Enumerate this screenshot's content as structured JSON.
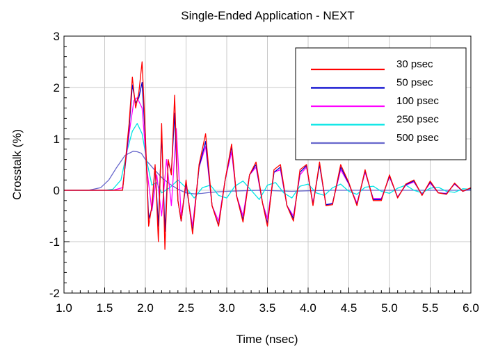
{
  "chart_data": {
    "type": "line",
    "title": "Single-Ended Application - NEXT",
    "xlabel": "Time (nsec)",
    "ylabel": "Crosstalk (%)",
    "xlim": [
      1.0,
      6.0
    ],
    "ylim": [
      -2,
      3
    ],
    "xticks": [
      "1.0",
      "1.5",
      "2.0",
      "2.5",
      "3.0",
      "3.5",
      "4.0",
      "4.5",
      "5.0",
      "5.5",
      "6.0"
    ],
    "yticks": [
      "-2",
      "-1",
      "0",
      "1",
      "2",
      "3"
    ],
    "grid": true,
    "legend_position": "top-right",
    "series": [
      {
        "name": "30 psec",
        "color": "#ff0000",
        "x": [
          1.0,
          1.6,
          1.72,
          1.8,
          1.84,
          1.88,
          1.92,
          1.96,
          2.0,
          2.04,
          2.08,
          2.12,
          2.16,
          2.2,
          2.24,
          2.28,
          2.32,
          2.36,
          2.4,
          2.44,
          2.5,
          2.58,
          2.66,
          2.74,
          2.82,
          2.9,
          2.98,
          3.06,
          3.12,
          3.2,
          3.28,
          3.36,
          3.44,
          3.5,
          3.58,
          3.66,
          3.74,
          3.82,
          3.9,
          3.98,
          4.06,
          4.14,
          4.22,
          4.3,
          4.4,
          4.5,
          4.6,
          4.7,
          4.8,
          4.9,
          5.0,
          5.1,
          5.2,
          5.3,
          5.4,
          5.5,
          5.6,
          5.7,
          5.8,
          5.9,
          6.0
        ],
        "y": [
          0,
          0,
          0,
          1.3,
          2.2,
          1.6,
          1.9,
          2.5,
          1.1,
          -0.7,
          -0.3,
          0.5,
          -1.0,
          1.3,
          -1.15,
          0.6,
          0.3,
          1.85,
          -0.2,
          -0.6,
          0.2,
          -0.85,
          0.5,
          1.1,
          -0.3,
          -0.7,
          0.2,
          0.9,
          -0.1,
          -0.62,
          0.3,
          0.55,
          -0.25,
          -0.7,
          0.4,
          0.5,
          -0.3,
          -0.6,
          0.4,
          0.5,
          -0.3,
          0.55,
          -0.3,
          -0.28,
          0.5,
          0.15,
          -0.3,
          0.4,
          -0.2,
          -0.2,
          0.3,
          -0.15,
          0.12,
          0.2,
          -0.1,
          0.18,
          -0.05,
          -0.08,
          0.14,
          -0.02,
          0.05
        ]
      },
      {
        "name": "50 psec",
        "color": "#0000cc",
        "x": [
          1.0,
          1.6,
          1.72,
          1.8,
          1.84,
          1.88,
          1.92,
          1.96,
          2.0,
          2.04,
          2.08,
          2.12,
          2.16,
          2.2,
          2.24,
          2.28,
          2.32,
          2.36,
          2.4,
          2.44,
          2.5,
          2.58,
          2.66,
          2.74,
          2.82,
          2.9,
          2.98,
          3.06,
          3.12,
          3.2,
          3.28,
          3.36,
          3.44,
          3.5,
          3.58,
          3.66,
          3.74,
          3.82,
          3.9,
          3.98,
          4.06,
          4.14,
          4.22,
          4.3,
          4.4,
          4.5,
          4.6,
          4.7,
          4.8,
          4.9,
          5.0,
          5.1,
          5.2,
          5.3,
          5.4,
          5.5,
          5.6,
          5.7,
          5.8,
          5.9,
          6.0
        ],
        "y": [
          0,
          0,
          0,
          1.2,
          2.05,
          1.7,
          1.8,
          2.1,
          1.0,
          -0.55,
          -0.35,
          0.45,
          -0.7,
          1.1,
          -0.8,
          0.55,
          0.35,
          1.5,
          -0.2,
          -0.6,
          0.15,
          -0.8,
          0.45,
          0.95,
          -0.3,
          -0.68,
          0.2,
          0.85,
          -0.1,
          -0.58,
          0.3,
          0.5,
          -0.25,
          -0.65,
          0.35,
          0.45,
          -0.3,
          -0.55,
          0.35,
          0.48,
          -0.28,
          0.5,
          -0.28,
          -0.26,
          0.45,
          0.13,
          -0.28,
          0.38,
          -0.18,
          -0.18,
          0.28,
          -0.14,
          0.11,
          0.18,
          -0.09,
          0.16,
          -0.05,
          -0.07,
          0.13,
          -0.02,
          0.04
        ]
      },
      {
        "name": "100 psec",
        "color": "#ff00ff",
        "x": [
          1.0,
          1.6,
          1.72,
          1.8,
          1.86,
          1.9,
          1.96,
          2.02,
          2.08,
          2.14,
          2.2,
          2.26,
          2.32,
          2.38,
          2.44,
          2.5,
          2.58,
          2.66,
          2.74,
          2.82,
          2.9,
          2.98,
          3.06,
          3.12,
          3.2,
          3.28,
          3.36,
          3.44,
          3.5,
          3.58,
          3.66,
          3.74,
          3.82,
          3.9,
          3.98,
          4.06,
          4.14,
          4.22,
          4.3,
          4.4,
          4.5,
          4.6,
          4.7,
          4.8,
          4.9,
          5.0,
          5.1,
          5.2,
          5.3,
          5.4,
          5.5,
          5.6,
          5.7,
          5.8,
          5.9,
          6.0
        ],
        "y": [
          0,
          0,
          0.05,
          1.1,
          1.75,
          1.8,
          1.6,
          0.4,
          -0.4,
          0.3,
          -0.5,
          0.6,
          -0.3,
          1.2,
          -0.5,
          0.1,
          -0.7,
          0.45,
          0.85,
          -0.3,
          -0.6,
          0.2,
          0.75,
          -0.1,
          -0.5,
          0.3,
          0.45,
          -0.25,
          -0.55,
          0.35,
          0.4,
          -0.3,
          -0.5,
          0.3,
          0.45,
          -0.25,
          0.5,
          -0.3,
          -0.25,
          0.4,
          0.12,
          -0.25,
          0.35,
          -0.16,
          -0.16,
          0.26,
          -0.13,
          0.1,
          0.16,
          -0.08,
          0.14,
          -0.05,
          -0.06,
          0.12,
          -0.02,
          0.04
        ]
      },
      {
        "name": "250 psec",
        "color": "#00e5e5",
        "x": [
          1.0,
          1.5,
          1.6,
          1.7,
          1.78,
          1.84,
          1.9,
          1.96,
          2.02,
          2.08,
          2.14,
          2.2,
          2.3,
          2.4,
          2.5,
          2.6,
          2.7,
          2.8,
          2.9,
          3.0,
          3.1,
          3.2,
          3.3,
          3.4,
          3.5,
          3.6,
          3.7,
          3.8,
          3.9,
          4.0,
          4.1,
          4.2,
          4.3,
          4.4,
          4.5,
          4.6,
          4.7,
          4.8,
          4.9,
          5.0,
          5.1,
          5.2,
          5.3,
          5.4,
          5.5,
          5.6,
          5.7,
          5.8,
          5.9,
          6.0
        ],
        "y": [
          0,
          0,
          0.02,
          0.2,
          0.8,
          1.15,
          1.3,
          1.1,
          0.55,
          0.1,
          0.15,
          -0.05,
          0.05,
          0.2,
          0.05,
          -0.15,
          0.05,
          0.1,
          -0.1,
          -0.15,
          0.08,
          0.18,
          0.0,
          -0.18,
          0.1,
          0.15,
          -0.05,
          -0.15,
          0.08,
          0.12,
          -0.05,
          -0.1,
          0.05,
          0.12,
          -0.02,
          -0.08,
          0.06,
          0.08,
          -0.02,
          -0.06,
          0.04,
          0.1,
          0.0,
          -0.05,
          0.04,
          0.06,
          -0.02,
          -0.04,
          0.03,
          0.02
        ]
      },
      {
        "name": "500 psec",
        "color": "#6666cc",
        "x": [
          1.0,
          1.3,
          1.45,
          1.55,
          1.65,
          1.75,
          1.85,
          1.9,
          1.95,
          2.0,
          2.1,
          2.2,
          2.3,
          2.4,
          2.5,
          2.6,
          2.7,
          2.8,
          2.9,
          3.0,
          3.2,
          3.4,
          3.6,
          3.8,
          4.0,
          4.3,
          4.6,
          5.0,
          5.5,
          6.0
        ],
        "y": [
          0,
          0,
          0.05,
          0.2,
          0.45,
          0.68,
          0.76,
          0.75,
          0.72,
          0.6,
          0.42,
          0.25,
          0.12,
          0.02,
          -0.05,
          -0.07,
          -0.06,
          -0.04,
          -0.03,
          -0.02,
          -0.01,
          0.0,
          -0.01,
          -0.02,
          -0.01,
          0.0,
          0.0,
          0.0,
          0.0,
          0.0
        ]
      }
    ]
  }
}
